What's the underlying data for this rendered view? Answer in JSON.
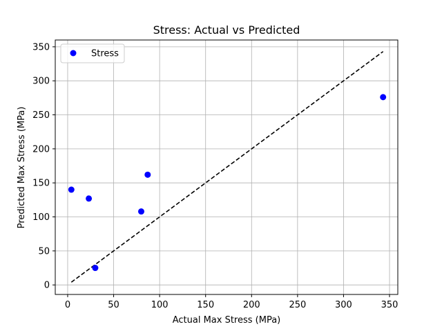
{
  "chart_data": {
    "type": "scatter",
    "title": "Stress: Actual vs Predicted",
    "xlabel": "Actual Max Stress (MPa)",
    "ylabel": "Predicted Max Stress (MPa)",
    "xlim": [
      -13.5,
      359
    ],
    "ylim": [
      -14,
      360
    ],
    "xticks": [
      0,
      50,
      100,
      150,
      200,
      250,
      300,
      350
    ],
    "yticks": [
      0,
      50,
      100,
      150,
      200,
      250,
      300,
      350
    ],
    "grid": true,
    "legend_position": "top-left",
    "series": [
      {
        "name": "Stress",
        "color": "#0000ff",
        "marker": "circle",
        "points": [
          {
            "x": 4,
            "y": 140
          },
          {
            "x": 23,
            "y": 127
          },
          {
            "x": 30,
            "y": 25
          },
          {
            "x": 80,
            "y": 108
          },
          {
            "x": 87,
            "y": 162
          },
          {
            "x": 343,
            "y": 276
          }
        ]
      }
    ],
    "reference_line": {
      "style": "dashed",
      "color": "#000000",
      "from": [
        4,
        4
      ],
      "to": [
        343,
        343
      ]
    }
  }
}
